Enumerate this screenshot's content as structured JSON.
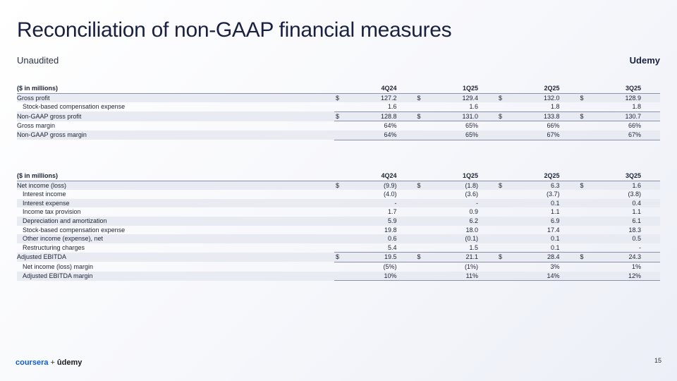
{
  "title": "Reconciliation of non-GAAP financial measures",
  "subtitle": "Unaudited",
  "brand": "Udemy",
  "periods": [
    "4Q24",
    "1Q25",
    "2Q25",
    "3Q25"
  ],
  "table1": {
    "header_label": "($ in millions)",
    "rows": [
      {
        "label": "Gross profit",
        "values": [
          "127.2",
          "129.4",
          "132.0",
          "128.9"
        ],
        "currency": "$"
      },
      {
        "label": "Stock-based compensation expense",
        "values": [
          "1.6",
          "1.6",
          "1.8",
          "1.8"
        ],
        "currency": ""
      },
      {
        "label": "Non-GAAP gross profit",
        "values": [
          "128.8",
          "131.0",
          "133.8",
          "130.7"
        ],
        "currency": "$"
      },
      {
        "label": "Gross margin",
        "values": [
          "64%",
          "65%",
          "66%",
          "66%"
        ],
        "currency": ""
      },
      {
        "label": "Non-GAAP gross margin",
        "values": [
          "64%",
          "65%",
          "67%",
          "67%"
        ],
        "currency": ""
      }
    ]
  },
  "table2": {
    "header_label": "($ in millions)",
    "rows": [
      {
        "label": "Net income (loss)",
        "values": [
          "(9.9)",
          "(1.8)",
          "6.3",
          "1.6"
        ],
        "currency": "$"
      },
      {
        "label": "Interest income",
        "values": [
          "(4.0)",
          "(3.6)",
          "(3.7)",
          "(3.8)"
        ],
        "currency": ""
      },
      {
        "label": "Interest expense",
        "values": [
          "-",
          "-",
          "0.1",
          "0.4"
        ],
        "currency": ""
      },
      {
        "label": "Income tax provision",
        "values": [
          "1.7",
          "0.9",
          "1.1",
          "1.1"
        ],
        "currency": ""
      },
      {
        "label": "Depreciation and amortization",
        "values": [
          "5.9",
          "6.2",
          "6.9",
          "6.1"
        ],
        "currency": ""
      },
      {
        "label": "Stock-based compensation expense",
        "values": [
          "19.8",
          "18.0",
          "17.4",
          "18.3"
        ],
        "currency": ""
      },
      {
        "label": "Other income (expense), net",
        "values": [
          "0.6",
          "(0.1)",
          "0.1",
          "0.5"
        ],
        "currency": ""
      },
      {
        "label": "Restructuring charges",
        "values": [
          "5.4",
          "1.5",
          "0.1",
          "-"
        ],
        "currency": ""
      },
      {
        "label": "Adjusted EBITDA",
        "values": [
          "19.5",
          "21.1",
          "28.4",
          "24.3"
        ],
        "currency": "$"
      },
      {
        "label": "Net income (loss) margin",
        "values": [
          "(5%)",
          "(1%)",
          "3%",
          "1%"
        ],
        "currency": ""
      },
      {
        "label": "Adjusted EBITDA margin",
        "values": [
          "10%",
          "11%",
          "14%",
          "12%"
        ],
        "currency": ""
      }
    ]
  },
  "footer": {
    "logo_left": "coursera",
    "logo_plus": "+",
    "logo_right": "ûdemy",
    "page_number": "15"
  }
}
